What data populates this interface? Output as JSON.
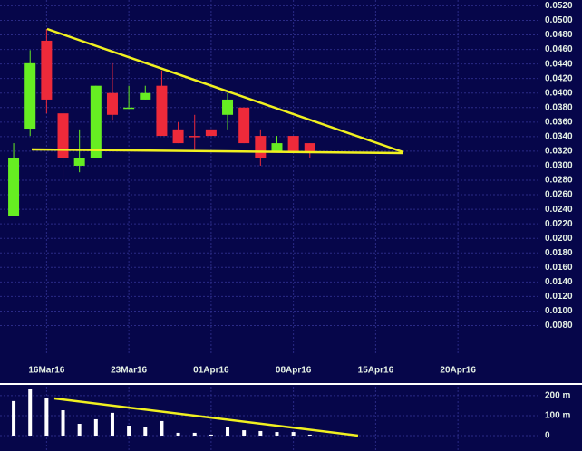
{
  "chart_data": [
    {
      "type": "candlestick",
      "x": [
        0,
        1,
        2,
        3,
        4,
        5,
        6,
        7,
        8,
        9,
        10,
        11,
        12,
        13,
        14,
        15,
        16,
        17,
        18
      ],
      "open": [
        0.0231,
        0.0351,
        0.0472,
        0.0372,
        0.03,
        0.031,
        0.04,
        0.038,
        0.0391,
        0.041,
        0.035,
        0.0341,
        0.035,
        0.037,
        0.038,
        0.0341,
        0.032,
        0.0341,
        0.0331
      ],
      "high": [
        0.0331,
        0.0459,
        0.0488,
        0.0388,
        0.035,
        0.041,
        0.0441,
        0.041,
        0.041,
        0.0431,
        0.036,
        0.037,
        0.035,
        0.04,
        0.038,
        0.035,
        0.0341,
        0.0341,
        0.0331
      ],
      "low": [
        0.0231,
        0.0341,
        0.0372,
        0.0281,
        0.0291,
        0.031,
        0.0362,
        0.038,
        0.0391,
        0.0341,
        0.0331,
        0.0322,
        0.0341,
        0.035,
        0.0331,
        0.03,
        0.032,
        0.032,
        0.031
      ],
      "close": [
        0.031,
        0.0441,
        0.0391,
        0.031,
        0.031,
        0.041,
        0.037,
        0.038,
        0.04,
        0.0341,
        0.0331,
        0.034,
        0.0341,
        0.0391,
        0.0331,
        0.031,
        0.0331,
        0.032,
        0.032
      ],
      "up_color": "#66ee22",
      "down_color": "#ee2a3a",
      "xlim": [
        -0.83,
        31.95
      ],
      "xticks": [
        {
          "value": 2,
          "label": "16Mar16"
        },
        {
          "value": 7,
          "label": "23Mar16"
        },
        {
          "value": 12,
          "label": "01Apr16"
        },
        {
          "value": 17,
          "label": "08Apr16"
        },
        {
          "value": 22,
          "label": "15Apr16"
        },
        {
          "value": 27,
          "label": "20Apr16"
        }
      ],
      "ylim": [
        0.0042,
        0.0528
      ],
      "yticks": [
        {
          "value": 0.052,
          "label": "0.0520"
        },
        {
          "value": 0.05,
          "label": "0.0500"
        },
        {
          "value": 0.048,
          "label": "0.0480"
        },
        {
          "value": 0.046,
          "label": "0.0460"
        },
        {
          "value": 0.044,
          "label": "0.0440"
        },
        {
          "value": 0.042,
          "label": "0.0420"
        },
        {
          "value": 0.04,
          "label": "0.0400"
        },
        {
          "value": 0.038,
          "label": "0.0380"
        },
        {
          "value": 0.036,
          "label": "0.0360"
        },
        {
          "value": 0.034,
          "label": "0.0340"
        },
        {
          "value": 0.032,
          "label": "0.0320"
        },
        {
          "value": 0.03,
          "label": "0.0300"
        },
        {
          "value": 0.028,
          "label": "0.0280"
        },
        {
          "value": 0.026,
          "label": "0.0260"
        },
        {
          "value": 0.024,
          "label": "0.0240"
        },
        {
          "value": 0.022,
          "label": "0.0220"
        },
        {
          "value": 0.02,
          "label": "0.0200"
        },
        {
          "value": 0.018,
          "label": "0.0180"
        },
        {
          "value": 0.016,
          "label": "0.0160"
        },
        {
          "value": 0.014,
          "label": "0.0140"
        },
        {
          "value": 0.012,
          "label": "0.0120"
        },
        {
          "value": 0.01,
          "label": "0.0100"
        },
        {
          "value": 0.008,
          "label": "0.0080"
        }
      ],
      "grid": true
    },
    {
      "type": "bar",
      "x": [
        0,
        1,
        2,
        3,
        4,
        5,
        6,
        7,
        8,
        9,
        10,
        11,
        12,
        13,
        14,
        15,
        16,
        17,
        18
      ],
      "values": [
        173,
        232,
        186,
        127,
        59,
        82,
        114,
        50,
        41,
        73,
        14,
        14,
        5,
        41,
        27,
        23,
        18,
        18,
        5
      ],
      "color": "#ffffff",
      "xlim": [
        -0.83,
        31.95
      ],
      "ylim": [
        -77,
        245
      ],
      "yticks": [
        {
          "value": 200,
          "label": "200 m"
        },
        {
          "value": 100,
          "label": "100 m"
        },
        0
      ],
      "grid": true
    }
  ]
}
